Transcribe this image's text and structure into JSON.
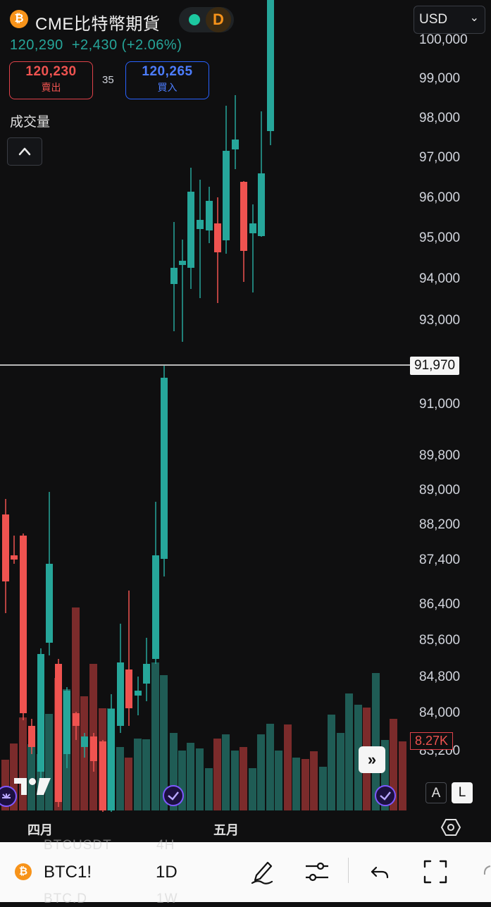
{
  "header": {
    "coin_icon": "bitcoin-icon",
    "title": "CME比特幣期貨",
    "session_badge": "D",
    "currency": "USD",
    "last_price": "120,290",
    "change": "+2,430",
    "change_pct": "(+2.06%)"
  },
  "quote": {
    "sell_price": "120,230",
    "sell_label": "賣出",
    "spread": "35",
    "buy_price": "120,265",
    "buy_label": "買入"
  },
  "volume_label": "成交量",
  "price_axis": {
    "upper": [
      "100,000",
      "99,000",
      "98,000",
      "97,000",
      "96,000",
      "95,000",
      "94,000",
      "93,000"
    ],
    "lower": [
      "91,000",
      "89,800",
      "89,000",
      "88,200",
      "87,400",
      "86,400",
      "85,600",
      "84,800",
      "84,000",
      "83,200"
    ],
    "crosshair_value": "91,970",
    "volume_marker": "8.27K"
  },
  "time_axis": {
    "labels": [
      "四月",
      "五月"
    ]
  },
  "scale_buttons": {
    "auto": "A",
    "log": "L"
  },
  "colors": {
    "up": "#26a69a",
    "down": "#ef5350",
    "up_volume": "#1f5c55",
    "down_volume": "#7b2b2b",
    "background": "#0f0f10"
  },
  "toolbar": {
    "symbol": "BTC1!",
    "interval": "1D",
    "ghost_symbols": [
      "BTCUSDT",
      "BTC.D"
    ],
    "ghost_intervals": [
      "4H",
      "1W"
    ],
    "icons": [
      "pen-icon",
      "indicators-icon",
      "undo-icon",
      "fullscreen-icon"
    ]
  }
}
